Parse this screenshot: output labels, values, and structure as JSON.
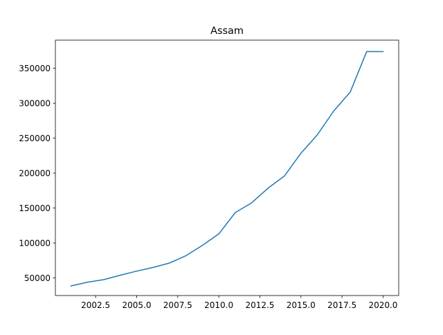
{
  "chart_data": {
    "type": "line",
    "title": "Assam",
    "xlabel": "",
    "ylabel": "",
    "x": [
      2001,
      2002,
      2003,
      2004,
      2005,
      2006,
      2007,
      2008,
      2009,
      2010,
      2011,
      2012,
      2013,
      2014,
      2015,
      2016,
      2017,
      2018,
      2019,
      2020
    ],
    "series": [
      {
        "values": [
          38500,
          43800,
          47500,
          53800,
          59700,
          65000,
          71300,
          81800,
          96500,
          113000,
          143500,
          157500,
          178500,
          196000,
          228500,
          255000,
          289000,
          316000,
          374000,
          374000
        ],
        "color": "#1f77b4"
      }
    ],
    "xlim": [
      2000.05,
      2020.95
    ],
    "ylim": [
      24725,
      390300
    ],
    "xticks": [
      2002.5,
      2005.0,
      2007.5,
      2010.0,
      2012.5,
      2015.0,
      2017.5,
      2020.0
    ],
    "xtick_labels": [
      "2002.5",
      "2005.0",
      "2007.5",
      "2010.0",
      "2012.5",
      "2015.0",
      "2017.5",
      "2020.0"
    ],
    "yticks": [
      50000,
      100000,
      150000,
      200000,
      250000,
      300000,
      350000
    ],
    "ytick_labels": [
      "50000",
      "100000",
      "150000",
      "200000",
      "250000",
      "300000",
      "350000"
    ],
    "grid": false,
    "legend": "none"
  }
}
